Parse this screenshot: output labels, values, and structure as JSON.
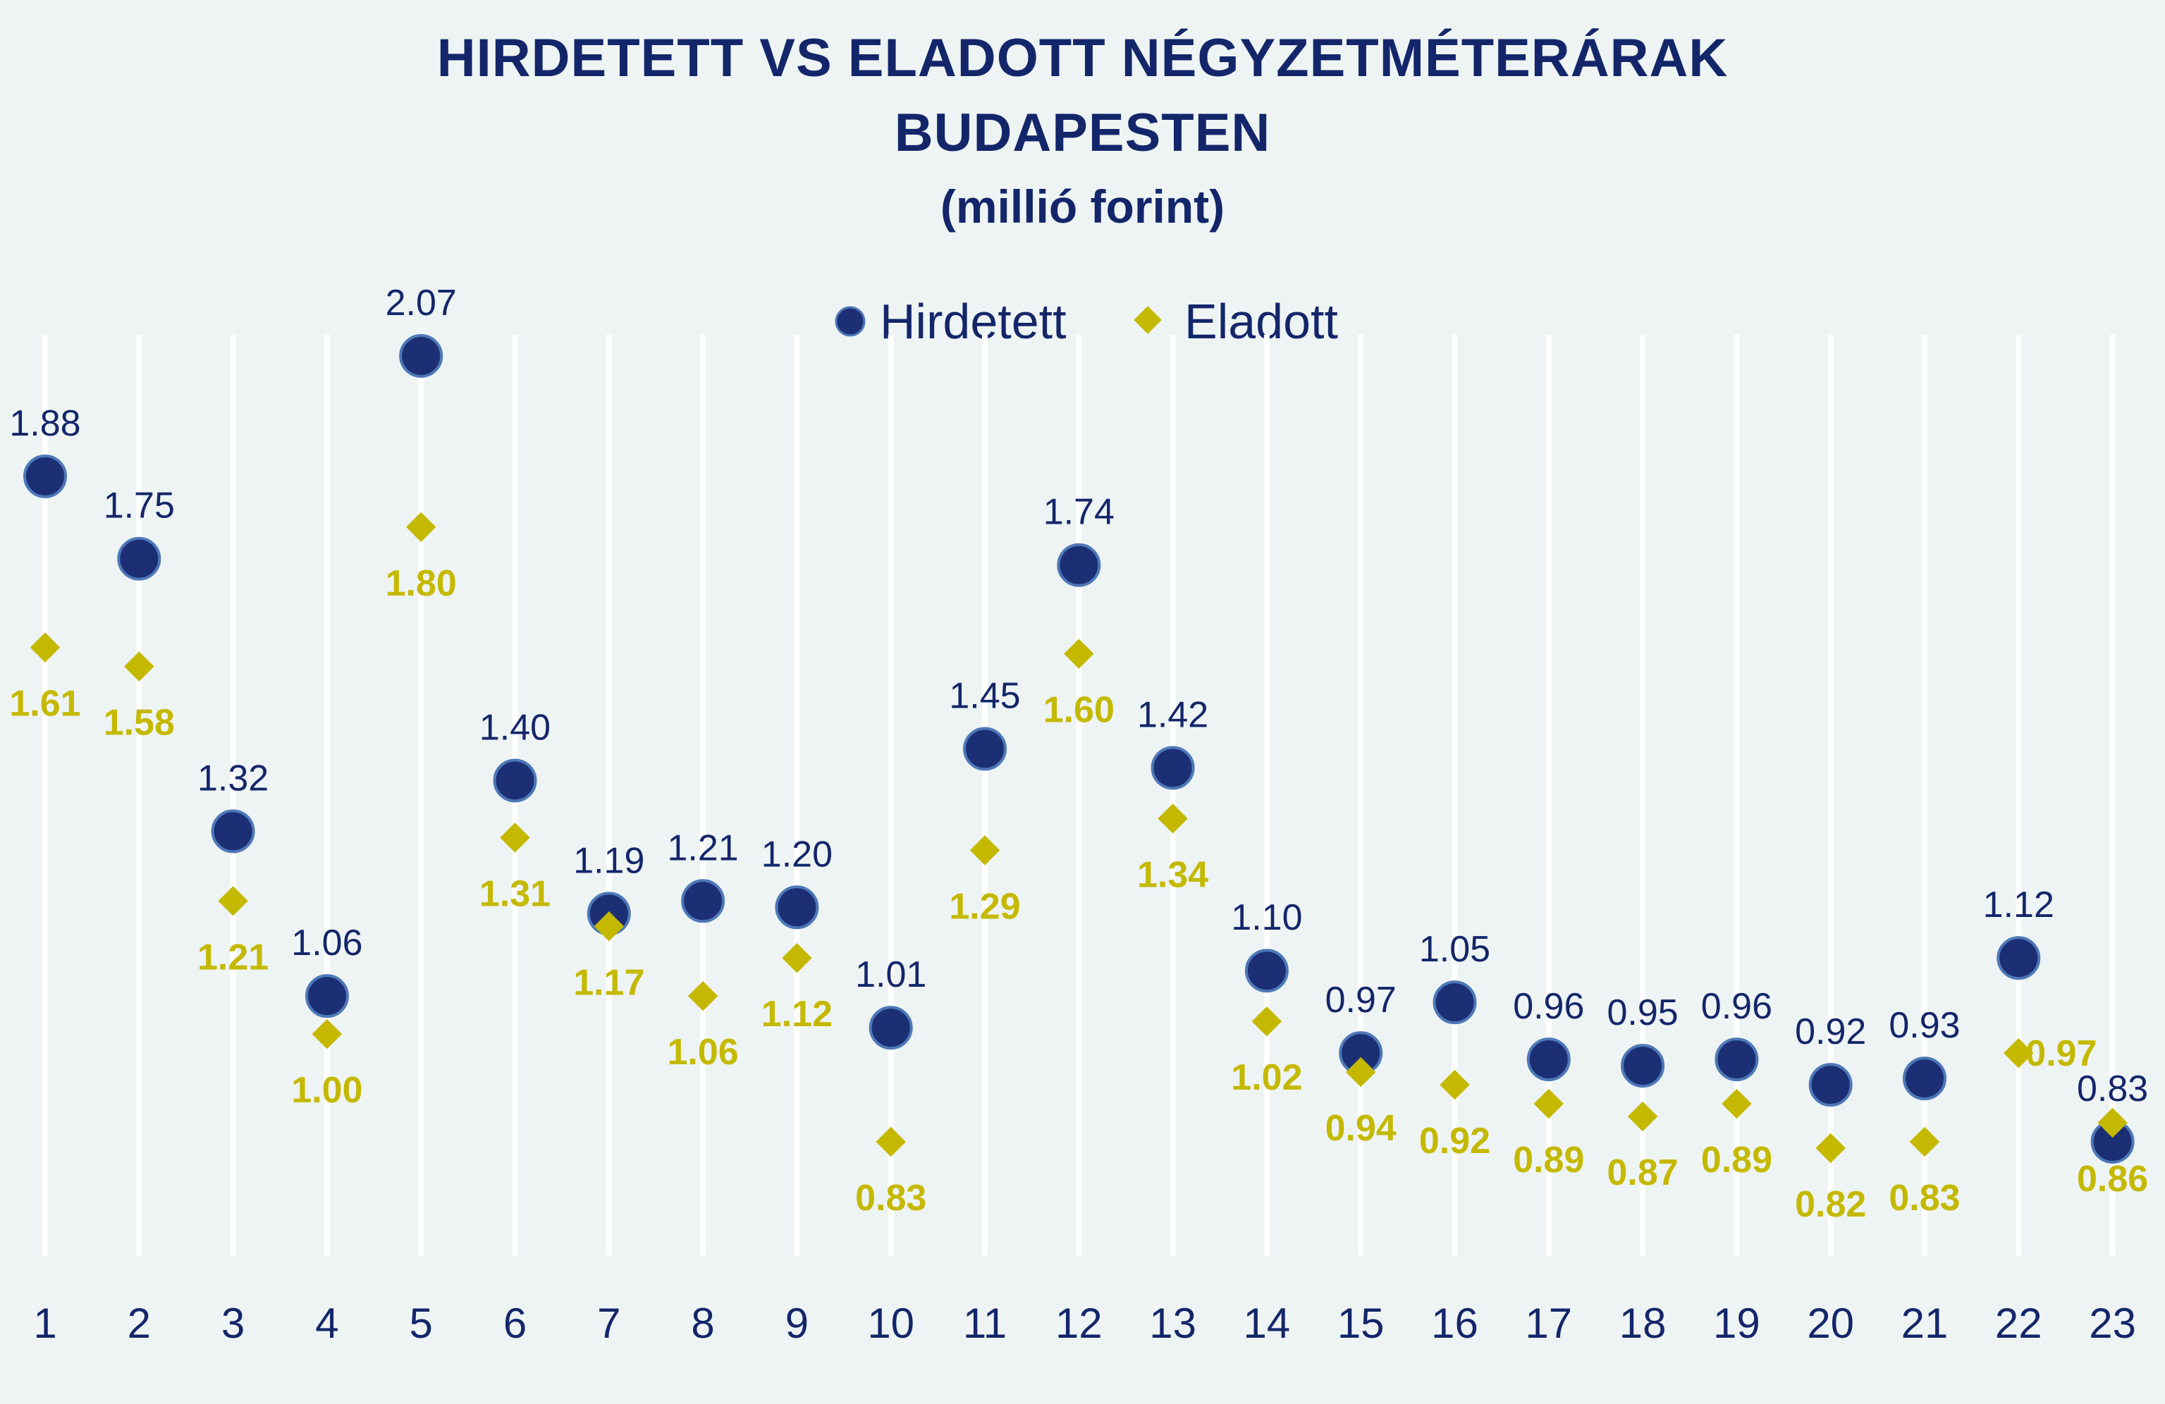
{
  "chart_data": {
    "type": "scatter",
    "title": [
      "HIRDETETT VS ELADOTT NÉGYZETMÉTERÁRAK",
      "BUDAPESTEN"
    ],
    "subtitle": "(millió forint)",
    "legend_position": "top-center",
    "grid": "vertical",
    "categories": [
      "1",
      "2",
      "3",
      "4",
      "5",
      "6",
      "7",
      "8",
      "9",
      "10",
      "11",
      "12",
      "13",
      "14",
      "15",
      "16",
      "17",
      "18",
      "19",
      "20",
      "21",
      "22",
      "23"
    ],
    "ylim": [
      0.6,
      2.15
    ],
    "series": [
      {
        "name": "Hirdetett",
        "marker": "circle",
        "values": [
          1.88,
          1.75,
          1.32,
          1.06,
          2.07,
          1.4,
          1.19,
          1.21,
          1.2,
          1.01,
          1.45,
          1.74,
          1.42,
          1.1,
          0.97,
          1.05,
          0.96,
          0.95,
          0.96,
          0.92,
          0.93,
          1.12,
          0.83
        ],
        "labels": [
          "1.88",
          "1.75",
          "1.32",
          "1.06",
          "2.07",
          "1.40",
          "1.19",
          "1.21",
          "1.20",
          "1.01",
          "1.45",
          "1.74",
          "1.42",
          "1.10",
          "0.97",
          "1.05",
          "0.96",
          "0.95",
          "0.96",
          "0.92",
          "0.93",
          "1.12",
          "0.83"
        ]
      },
      {
        "name": "Eladott",
        "marker": "diamond",
        "values": [
          1.61,
          1.58,
          1.21,
          1.0,
          1.8,
          1.31,
          1.17,
          1.06,
          1.12,
          0.83,
          1.29,
          1.6,
          1.34,
          1.02,
          0.94,
          0.92,
          0.89,
          0.87,
          0.89,
          0.82,
          0.83,
          0.97,
          0.86
        ],
        "labels": [
          "1.61",
          "1.58",
          "1.21",
          "1.00",
          "1.80",
          "1.31",
          "1.17",
          "1.06",
          "1.12",
          "0.83",
          "1.29",
          "1.60",
          "1.34",
          "1.02",
          "0.94",
          "0.92",
          "0.89",
          "0.87",
          "0.89",
          "0.82",
          "0.83",
          "0.97",
          "0.86"
        ]
      }
    ]
  },
  "colors": {
    "hirdetett": "#1c2f75",
    "hirdetett_edge": "#4e78b8",
    "eladott": "#c4b900",
    "grid": "#ffffff",
    "background": "#eef4f3",
    "title": "#14266a"
  }
}
